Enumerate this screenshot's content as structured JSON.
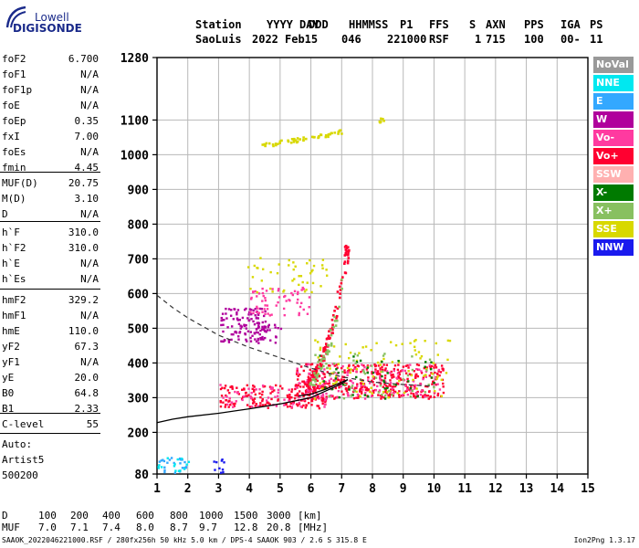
{
  "logo": {
    "line1": "Lowell",
    "line2": "DIGISONDE"
  },
  "header": {
    "labels": [
      "Station",
      "YYYY",
      "DAY",
      "DDD",
      "HHMMSS",
      "P1",
      "FFS",
      "S",
      "AXN",
      "PPS",
      "IGA",
      "PS"
    ],
    "values": [
      "SaoLuis",
      "2022",
      "Feb15",
      "046",
      "221000",
      "RSF",
      "",
      "1",
      "715",
      "100",
      "00-",
      "11"
    ]
  },
  "params": {
    "group1": [
      {
        "name": "foF2",
        "value": "6.700"
      },
      {
        "name": "foF1",
        "value": "N/A"
      },
      {
        "name": "foF1p",
        "value": "N/A"
      },
      {
        "name": "foE",
        "value": "N/A"
      },
      {
        "name": "foEp",
        "value": "0.35"
      },
      {
        "name": "fxI",
        "value": "7.00"
      },
      {
        "name": "foEs",
        "value": "N/A"
      },
      {
        "name": "fmin",
        "value": "4.45"
      }
    ],
    "group2": [
      {
        "name": "MUF(D)",
        "value": "20.75"
      },
      {
        "name": "M(D)",
        "value": "3.10"
      },
      {
        "name": "D",
        "value": "N/A"
      }
    ],
    "group3": [
      {
        "name": "h`F",
        "value": "310.0"
      },
      {
        "name": "h`F2",
        "value": "310.0"
      },
      {
        "name": "h`E",
        "value": "N/A"
      },
      {
        "name": "h`Es",
        "value": "N/A"
      }
    ],
    "group4": [
      {
        "name": "hmF2",
        "value": "329.2"
      },
      {
        "name": "hmF1",
        "value": "N/A"
      },
      {
        "name": "hmE",
        "value": "110.0"
      },
      {
        "name": "yF2",
        "value": "67.3"
      },
      {
        "name": "yF1",
        "value": "N/A"
      },
      {
        "name": "yE",
        "value": "20.0"
      },
      {
        "name": "B0",
        "value": "64.8"
      },
      {
        "name": "B1",
        "value": "2.33"
      }
    ],
    "group5": [
      {
        "name": "C-level",
        "value": "55"
      }
    ],
    "auto": [
      "Auto:",
      "Artist5",
      "500200"
    ]
  },
  "legend": [
    {
      "label": "NoVal",
      "color": "#999999"
    },
    {
      "label": "NNE",
      "color": "#00e8f0"
    },
    {
      "label": "E",
      "color": "#33a8ff"
    },
    {
      "label": "W",
      "color": "#b0009c"
    },
    {
      "label": "Vo-",
      "color": "#ff3aa0"
    },
    {
      "label": "Vo+",
      "color": "#ff0030"
    },
    {
      "label": "SSW",
      "color": "#ffb0b0"
    },
    {
      "label": "X-",
      "color": "#007a00"
    },
    {
      "label": "X+",
      "color": "#88c060"
    },
    {
      "label": "SSE",
      "color": "#d8d800"
    },
    {
      "label": "NNW",
      "color": "#1a1aee"
    }
  ],
  "muf_table": {
    "d_label": "D",
    "d_values": [
      "100",
      "200",
      "400",
      "600",
      "800",
      "1000",
      "1500",
      "3000"
    ],
    "d_unit": "[km]",
    "muf_label": "MUF",
    "muf_values": [
      "7.0",
      "7.1",
      "7.4",
      "8.0",
      "8.7",
      "9.7",
      "12.8",
      "20.8"
    ],
    "muf_unit": "[MHz]"
  },
  "footer": {
    "left": "SAAOK_2022046221000.RSF / 280fx256h 50 kHz 5.0 km / DPS-4 SAAOK 903 / 2.6 S 315.8 E",
    "right": "Ion2Png 1.3.17"
  },
  "chart_data": {
    "type": "scatter",
    "x_ticks": [
      1,
      2,
      3,
      4,
      5,
      6,
      7,
      8,
      9,
      10,
      11,
      12,
      13,
      14,
      15
    ],
    "xlim": [
      1,
      15
    ],
    "y_ticks": [
      80,
      200,
      300,
      400,
      500,
      600,
      700,
      800,
      900,
      1000,
      1100,
      1280
    ],
    "ylim": [
      80,
      1280
    ],
    "grid": true,
    "clusters": [
      {
        "color": "#ff0030",
        "fmin": 3.0,
        "fmax": 6.5,
        "hmin": 272,
        "hmax": 340,
        "count": 170
      },
      {
        "color": "#ff3aa0",
        "fmin": 3.0,
        "fmax": 6.5,
        "hmin": 272,
        "hmax": 340,
        "count": 60
      },
      {
        "color": "#ff0030",
        "fmin": 5.5,
        "fmax": 10.3,
        "hmin": 300,
        "hmax": 400,
        "count": 380
      },
      {
        "color": "#ff3aa0",
        "fmin": 5.5,
        "fmax": 10.3,
        "hmin": 300,
        "hmax": 400,
        "count": 120
      },
      {
        "color": "#d8d800",
        "fmin": 6.0,
        "fmax": 10.5,
        "hmin": 300,
        "hmax": 470,
        "count": 90
      },
      {
        "color": "#007a00",
        "fmin": 6.0,
        "fmax": 10.0,
        "hmin": 300,
        "hmax": 430,
        "count": 40
      },
      {
        "color": "#88c060",
        "fmin": 6.0,
        "fmax": 10.0,
        "hmin": 300,
        "hmax": 430,
        "count": 50
      },
      {
        "color": "#b0009c",
        "fmin": 3.0,
        "fmax": 4.5,
        "hmin": 460,
        "hmax": 560,
        "count": 110
      },
      {
        "color": "#ff3aa0",
        "fmin": 4.0,
        "fmax": 6.0,
        "hmin": 540,
        "hmax": 620,
        "count": 60
      },
      {
        "color": "#b0009c",
        "fmin": 4.0,
        "fmax": 5.0,
        "hmin": 460,
        "hmax": 520,
        "count": 30
      },
      {
        "color": "#d8d800",
        "fmin": 3.8,
        "fmax": 6.5,
        "hmin": 600,
        "hmax": 710,
        "count": 45
      },
      {
        "color": "#33a8ff",
        "fmin": 1.0,
        "fmax": 2.0,
        "hmin": 85,
        "hmax": 130,
        "count": 25
      },
      {
        "color": "#00e8f0",
        "fmin": 1.0,
        "fmax": 2.0,
        "hmin": 85,
        "hmax": 130,
        "count": 15
      },
      {
        "color": "#1a1aee",
        "fmin": 2.8,
        "fmax": 3.2,
        "hmin": 85,
        "hmax": 125,
        "count": 10
      }
    ],
    "traces": [
      {
        "color": "#ff0030",
        "points": [
          [
            5.8,
            330
          ],
          [
            6.0,
            360
          ],
          [
            6.2,
            390
          ],
          [
            6.4,
            430
          ],
          [
            6.6,
            490
          ],
          [
            6.8,
            560
          ],
          [
            7.0,
            640
          ],
          [
            7.1,
            700
          ],
          [
            7.15,
            750
          ]
        ],
        "spread": 0.08,
        "count": 110
      },
      {
        "color": "#88c060",
        "points": [
          [
            5.9,
            330
          ],
          [
            6.1,
            360
          ],
          [
            6.3,
            400
          ],
          [
            6.5,
            440
          ],
          [
            6.7,
            500
          ],
          [
            6.9,
            580
          ],
          [
            7.0,
            640
          ]
        ],
        "spread": 0.08,
        "count": 40
      },
      {
        "color": "#d8d800",
        "points": [
          [
            4.4,
            1030
          ],
          [
            5.5,
            1045
          ],
          [
            6.5,
            1060
          ],
          [
            7.0,
            1070
          ]
        ],
        "spread": 0.05,
        "count": 55
      },
      {
        "color": "#d8d800",
        "points": [
          [
            8.2,
            1100
          ],
          [
            8.5,
            1115
          ]
        ],
        "spread": 0.05,
        "count": 6
      }
    ],
    "dashed_curve": [
      [
        1.0,
        595
      ],
      [
        1.5,
        560
      ],
      [
        2.0,
        530
      ],
      [
        3.0,
        480
      ],
      [
        4.0,
        445
      ],
      [
        5.0,
        415
      ],
      [
        6.0,
        385
      ],
      [
        7.0,
        360
      ],
      [
        8.0,
        345
      ],
      [
        9.0,
        338
      ],
      [
        10.0,
        333
      ]
    ],
    "solid_curve": [
      [
        1.0,
        228
      ],
      [
        1.5,
        238
      ],
      [
        2.0,
        245
      ],
      [
        3.0,
        255
      ],
      [
        4.0,
        268
      ],
      [
        5.0,
        282
      ],
      [
        6.0,
        300
      ],
      [
        6.5,
        320
      ],
      [
        7.0,
        340
      ],
      [
        7.2,
        352
      ]
    ],
    "solid_curve_lower": [
      [
        5.6,
        305
      ],
      [
        6.0,
        310
      ],
      [
        6.5,
        325
      ],
      [
        7.0,
        345
      ],
      [
        7.2,
        352
      ]
    ]
  }
}
